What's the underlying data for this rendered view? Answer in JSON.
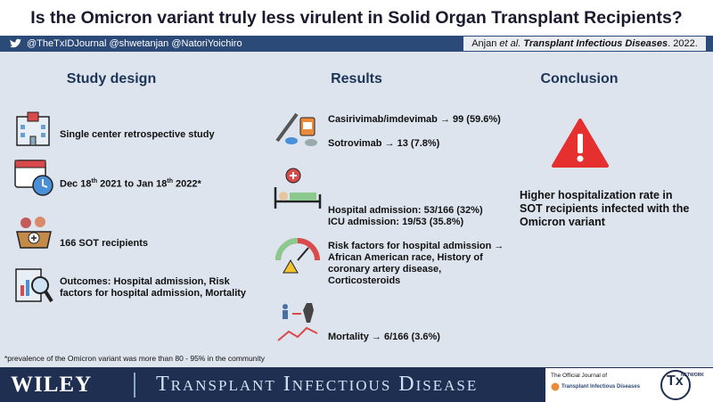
{
  "header": {
    "title": "Is the Omicron variant truly less virulent in Solid Organ Transplant Recipients?",
    "handles": "@TheTxIDJournal  @shwetanjan @NatoriYoichiro",
    "citation": {
      "authors": "Anjan ",
      "etal": "et al.",
      "journal": " Transplant Infectious Diseases",
      "year": ".  2022."
    }
  },
  "study_design": {
    "heading": "Study design",
    "design": "Single center retrospective study",
    "dates": [
      "Dec 18",
      "th",
      "  2021 to Jan 18",
      "th",
      " 2022*"
    ],
    "population": "166 SOT recipients",
    "outcomes": "Outcomes: Hospital admission, Risk factors for hospital admission, Mortality"
  },
  "results": {
    "heading": "Results",
    "treatment": [
      "Casirivimab/imdevimab → 99 (59.6%)",
      "Sotrovimab → 13 (7.8%)"
    ],
    "admission": [
      "Hospital admission: 53/166 (32%)",
      "ICU admission: 19/53 (35.8%)"
    ],
    "risk_factors": "Risk factors for hospital admission → African American race, History of coronary artery disease, Corticosteroids",
    "mortality": "Mortality → 6/166 (3.6%)"
  },
  "conclusion": {
    "heading": "Conclusion",
    "text": "Higher hospitalization rate in SOT recipients infected with the Omicron variant"
  },
  "footnote": "*prevalence of the Omicron variant was more than 80 - 95% in the community",
  "footer": {
    "publisher": "WILEY",
    "journal": "Transplant Infectious Disease",
    "official": "The Official Journal of",
    "society": "Transplant Infectious Diseases",
    "network_logo": "Tx",
    "network": "NETWORK"
  }
}
